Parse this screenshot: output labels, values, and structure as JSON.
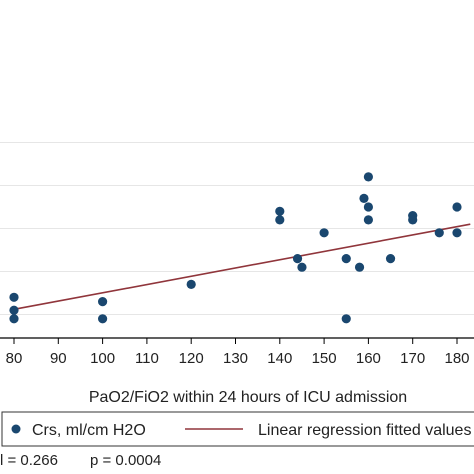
{
  "chart_data": {
    "type": "scatter",
    "xlabel": "PaO2/FiO2 within 24 hours of ICU admission",
    "ylabel": "",
    "xlim": [
      78,
      183
    ],
    "ylim": [
      25,
      75
    ],
    "x_ticks": [
      "80",
      "90",
      "100",
      "110",
      "120",
      "130",
      "140",
      "150",
      "160",
      "170",
      "180"
    ],
    "y_grid": [
      30,
      40,
      50,
      60,
      70
    ],
    "grid": true,
    "legend_position": "bottom",
    "series": [
      {
        "name": "Crs, ml/cm H2O",
        "kind": "scatter",
        "color": "#1a476f",
        "x": [
          80,
          80,
          80,
          100,
          100,
          120,
          140,
          140,
          144,
          145,
          150,
          155,
          155,
          158,
          159,
          160,
          160,
          160,
          165,
          170,
          170,
          176,
          180,
          180
        ],
        "y": [
          34,
          31,
          29,
          33,
          29,
          37,
          54,
          52,
          43,
          41,
          49,
          43,
          29,
          41,
          57,
          62,
          55,
          52,
          43,
          53,
          52,
          49,
          55,
          49
        ]
      },
      {
        "name": "Linear regression fitted values",
        "kind": "line",
        "color": "#90353b",
        "x": [
          80,
          183
        ],
        "y": [
          31.2,
          51
        ]
      }
    ],
    "annotation": {
      "r_text": "l = 0.266",
      "p_text": "p = 0.0004"
    }
  }
}
